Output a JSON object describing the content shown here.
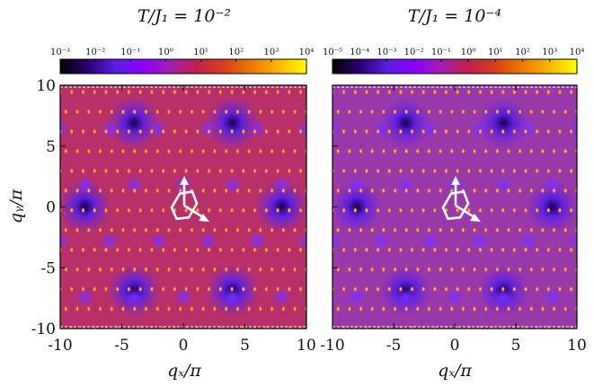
{
  "chart_data": [
    {
      "type": "heatmap",
      "title": "T/J₁ = 10⁻²",
      "xlabel": "qₓ/π",
      "ylabel": "qᵧ/π",
      "xlim": [
        -10,
        10
      ],
      "ylim": [
        -10,
        10
      ],
      "x_ticks": [
        "-10",
        "-5",
        "0",
        "5",
        "10"
      ],
      "y_ticks": [
        "-10",
        "-5",
        "0",
        "5",
        "10"
      ],
      "colorbar": {
        "scale": "log",
        "range": [
          0.001,
          10000
        ],
        "tick_labels": [
          "10⁻³",
          "10⁻²",
          "10⁻¹",
          "10⁰",
          "10¹",
          "10²",
          "10³",
          "10⁴"
        ],
        "colormap": [
          "#000000",
          "#2a0070",
          "#5a1ee0",
          "#8a00ff",
          "#a01fb0",
          "#c0204a",
          "#d8401a",
          "#ec7a00",
          "#f8b800",
          "#ffff00"
        ]
      },
      "background_color": "#b8306a",
      "minima_color": "#5a28e0",
      "peak_color": "#ffbb22",
      "overlay": {
        "hexagon": "white",
        "arrows": 2
      }
    },
    {
      "type": "heatmap",
      "title": "T/J₁ = 10⁻⁴",
      "xlabel": "qₓ/π",
      "ylabel": "",
      "xlim": [
        -10,
        10
      ],
      "ylim": [
        -10,
        10
      ],
      "x_ticks": [
        "-10",
        "-5",
        "0",
        "5",
        "10"
      ],
      "y_ticks": [],
      "colorbar": {
        "scale": "log",
        "range": [
          1e-05,
          10000
        ],
        "tick_labels": [
          "10⁻⁵",
          "10⁻⁴",
          "10⁻³",
          "10⁻²",
          "10⁻¹",
          "10⁰",
          "10¹",
          "10²",
          "10³",
          "10⁴"
        ],
        "colormap": [
          "#000000",
          "#2a0070",
          "#5a1ee0",
          "#8a00ff",
          "#a01fb0",
          "#c0204a",
          "#d8401a",
          "#ec7a00",
          "#f8b800",
          "#ffff00"
        ]
      },
      "background_color": "#9a3aaa",
      "minima_color": "#6a22ee",
      "peak_color": "#ffbb22",
      "overlay": {
        "hexagon": "white",
        "arrows": 2
      }
    }
  ]
}
